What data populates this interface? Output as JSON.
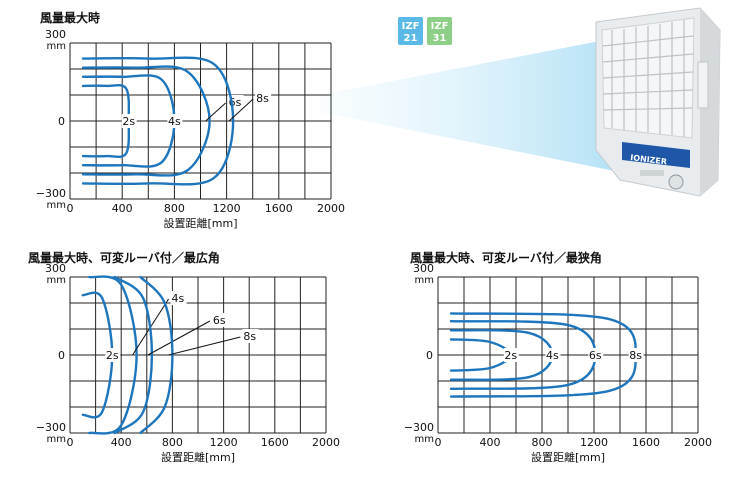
{
  "badges": [
    {
      "line1": "IZF",
      "line2": "21",
      "color": "#5ab9e6"
    },
    {
      "line1": "IZF",
      "line2": "31",
      "color": "#8dcf86"
    }
  ],
  "device": {
    "brand": "IONIZER"
  },
  "colors": {
    "curve": "#1d76bd",
    "beam": "#bfe6f7",
    "grid": "#222222"
  },
  "chart_data": [
    {
      "type": "line",
      "title": "風量最大時",
      "xlabel": "設置距離[mm]",
      "xlim": [
        0,
        2000
      ],
      "ylim": [
        -300,
        300
      ],
      "x_ticks": [
        "0",
        "400",
        "800",
        "1200",
        "1600",
        "2000"
      ],
      "y_ticks": [
        "300",
        "0",
        "−300"
      ],
      "y_unit": "mm",
      "series": [
        {
          "name": "2s",
          "values": [
            [
              100,
              135
            ],
            [
              280,
              135
            ],
            [
              430,
              125
            ],
            [
              450,
              0
            ],
            [
              430,
              -125
            ],
            [
              280,
              -135
            ],
            [
              100,
              -135
            ]
          ]
        },
        {
          "name": "4s",
          "values": [
            [
              100,
              170
            ],
            [
              400,
              170
            ],
            [
              700,
              160
            ],
            [
              800,
              0
            ],
            [
              700,
              -160
            ],
            [
              400,
              -170
            ],
            [
              100,
              -170
            ]
          ]
        },
        {
          "name": "6s",
          "values": [
            [
              100,
              205
            ],
            [
              500,
              205
            ],
            [
              900,
              190
            ],
            [
              1070,
              0
            ],
            [
              900,
              -190
            ],
            [
              500,
              -205
            ],
            [
              100,
              -205
            ]
          ]
        },
        {
          "name": "8s",
          "values": [
            [
              100,
              240
            ],
            [
              600,
              240
            ],
            [
              1100,
              220
            ],
            [
              1250,
              0
            ],
            [
              1100,
              -220
            ],
            [
              600,
              -240
            ],
            [
              100,
              -240
            ]
          ]
        }
      ]
    },
    {
      "type": "line",
      "title": "風量最大時、可変ルーバ付／最広角",
      "xlabel": "設置距離[mm]",
      "xlim": [
        0,
        2000
      ],
      "ylim": [
        -300,
        300
      ],
      "x_ticks": [
        "0",
        "400",
        "800",
        "1200",
        "1600",
        "2000"
      ],
      "y_ticks": [
        "300",
        "0",
        "−300"
      ],
      "y_unit": "mm",
      "series": [
        {
          "name": "2s",
          "values": [
            [
              100,
              230
            ],
            [
              250,
              220
            ],
            [
              330,
              0
            ],
            [
              250,
              -220
            ],
            [
              100,
              -230
            ]
          ]
        },
        {
          "name": "4s",
          "values": [
            [
              150,
              300
            ],
            [
              400,
              270
            ],
            [
              520,
              0
            ],
            [
              400,
              -270
            ],
            [
              150,
              -300
            ]
          ]
        },
        {
          "name": "6s",
          "values": [
            [
              350,
              300
            ],
            [
              570,
              220
            ],
            [
              640,
              0
            ],
            [
              570,
              -220
            ],
            [
              350,
              -300
            ]
          ]
        },
        {
          "name": "8s",
          "values": [
            [
              550,
              300
            ],
            [
              740,
              200
            ],
            [
              800,
              0
            ],
            [
              740,
              -200
            ],
            [
              550,
              -300
            ]
          ]
        }
      ]
    },
    {
      "type": "line",
      "title": "風量最大時、可変ルーバ付／最狭角",
      "xlabel": "設置距離[mm]",
      "xlim": [
        0,
        2000
      ],
      "ylim": [
        -300,
        300
      ],
      "x_ticks": [
        "0",
        "400",
        "800",
        "1200",
        "1600",
        "2000"
      ],
      "y_ticks": [
        "300",
        "0",
        "−300"
      ],
      "y_unit": "mm",
      "series": [
        {
          "name": "2s",
          "values": [
            [
              100,
              60
            ],
            [
              400,
              50
            ],
            [
              560,
              0
            ],
            [
              400,
              -50
            ],
            [
              100,
              -60
            ]
          ]
        },
        {
          "name": "4s",
          "values": [
            [
              100,
              95
            ],
            [
              700,
              85
            ],
            [
              880,
              0
            ],
            [
              700,
              -85
            ],
            [
              100,
              -95
            ]
          ]
        },
        {
          "name": "6s",
          "values": [
            [
              100,
              130
            ],
            [
              1000,
              115
            ],
            [
              1210,
              0
            ],
            [
              1000,
              -115
            ],
            [
              100,
              -130
            ]
          ]
        },
        {
          "name": "8s",
          "values": [
            [
              100,
              160
            ],
            [
              1300,
              140
            ],
            [
              1520,
              0
            ],
            [
              1300,
              -140
            ],
            [
              100,
              -160
            ]
          ]
        }
      ]
    }
  ]
}
